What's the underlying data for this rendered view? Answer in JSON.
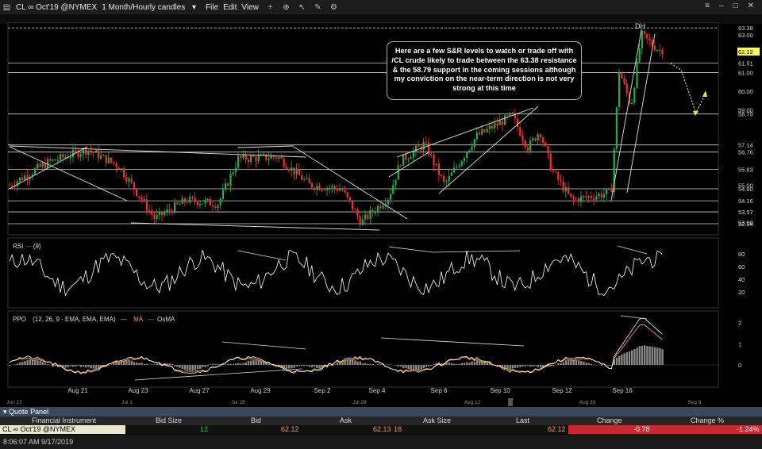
{
  "window": {
    "symbol": "CL ∞ Oct'19 @NYMEX",
    "period": "1 Month/Hourly candles",
    "menus": [
      "File",
      "Edit",
      "View"
    ]
  },
  "colors": {
    "up": "#19b34a",
    "down": "#ff2a2a",
    "rsi": "#ffffff",
    "ppo": "#ffffff",
    "ma": "#ff9933",
    "osma": "#888888",
    "price_tag": "#ffff66",
    "change_neg_bg": "#c8282e",
    "bid_color": "#ff9933",
    "size_color": "#33cc33"
  },
  "price_axis": [
    "63.38",
    "63.00",
    "62.12",
    "61.51",
    "61.00",
    "60.00",
    "59.00",
    "58.79",
    "57.14",
    "56.76",
    "55.83",
    "55.00",
    "54.80",
    "54.16",
    "53.57",
    "53.00",
    "52.94"
  ],
  "pattern_label": "DH",
  "annotation": "Here are a few S&R levels to watch or trade off with /CL crude likely to trade between the 63.38 resistance & the 58.79 support in the coming sessions although my conviction on the near-term direction is not very strong at this time",
  "rsi": {
    "label": "RSI",
    "param": "(9)",
    "ticks": [
      "80",
      "60",
      "40",
      "20"
    ]
  },
  "ppo": {
    "label": "PPO",
    "params": "(12, 26, 9 - EMA, EMA, EMA)",
    "ma": "MA",
    "osma": "OsMA",
    "ticks": [
      "2",
      "1",
      "0"
    ]
  },
  "dates_top": [
    "Aug 21",
    "Aug 23",
    "Aug 27",
    "Aug 29",
    "Sep 2",
    "Sep 4",
    "Sep 6",
    "Sep 10",
    "Sep 12",
    "Sep 16"
  ],
  "dates_bottom": [
    "Jun 17",
    "Jul 1",
    "Jul 15",
    "Jul 29",
    "Aug 12",
    "Aug 26",
    "Sep 9"
  ],
  "quote_panel": {
    "title": "Quote Panel",
    "columns": [
      "Financial Instrument",
      "Bid Size",
      "Bid",
      "Ask",
      "Ask Size",
      "Last",
      "Change",
      "Change %"
    ],
    "row": {
      "instrument": "CL ∞ Oct'19 @NYMEX",
      "bid_size": "12",
      "bid": "62.12",
      "ask": "62.13",
      "ask_size": "16",
      "last": "62.12",
      "change": "-0.78",
      "change_pct": "-1.24%"
    }
  },
  "status": "8:06:07 AM 9/17/2019"
}
